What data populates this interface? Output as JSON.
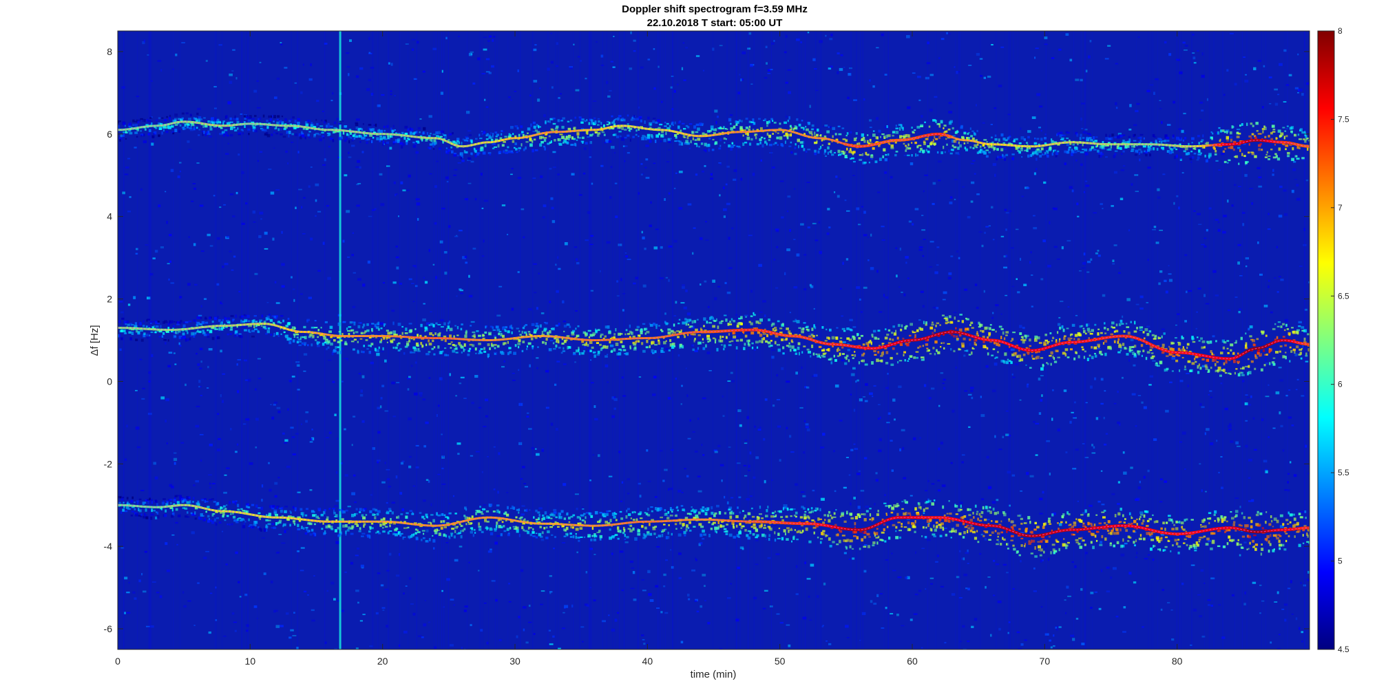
{
  "chart_data": {
    "type": "heatmap",
    "title": "Doppler shift spectrogram f=3.59 MHz",
    "subtitle": "22.10.2018   T start: 05:00 UT",
    "xlabel": "time (min)",
    "ylabel": "Δf [Hz]",
    "xlim": [
      0,
      90
    ],
    "ylim": [
      -6.5,
      8.5
    ],
    "x_ticks": [
      0,
      10,
      20,
      30,
      40,
      50,
      60,
      70,
      80
    ],
    "y_ticks": [
      -6,
      -4,
      -2,
      0,
      2,
      4,
      6,
      8
    ],
    "colormap": "jet",
    "colorbar": {
      "range": [
        4.5,
        8
      ],
      "ticks": [
        4.5,
        5,
        5.5,
        6,
        6.5,
        7,
        7.5,
        8
      ]
    },
    "background_level": 4.6,
    "traces": [
      {
        "x": [
          0,
          3,
          5,
          8,
          10,
          13,
          16,
          20,
          24,
          26,
          28,
          30,
          33,
          36,
          38,
          41,
          44,
          47,
          50,
          53,
          56,
          59,
          62,
          64,
          66,
          69,
          72,
          75,
          78,
          81,
          84,
          86,
          88,
          90
        ],
        "y": [
          6.1,
          6.2,
          6.3,
          6.2,
          6.25,
          6.2,
          6.1,
          6.0,
          5.9,
          5.7,
          5.8,
          5.9,
          6.05,
          6.1,
          6.2,
          6.1,
          5.95,
          6.05,
          6.1,
          5.9,
          5.7,
          5.85,
          6.0,
          5.85,
          5.75,
          5.7,
          5.8,
          5.75,
          5.75,
          5.7,
          5.75,
          5.85,
          5.8,
          5.7
        ],
        "intensity": [
          6.2,
          6.2,
          6.3,
          6.4,
          6.2,
          6.3,
          6.3,
          6.3,
          6.4,
          6.5,
          6.6,
          6.8,
          7.0,
          6.8,
          6.6,
          6.6,
          6.8,
          7.0,
          7.0,
          7.0,
          7.3,
          7.2,
          7.4,
          6.9,
          6.7,
          6.6,
          6.5,
          6.4,
          6.3,
          6.5,
          7.6,
          7.8,
          7.4,
          7.2
        ]
      },
      {
        "x": [
          0,
          4,
          8,
          11,
          14,
          17,
          20,
          24,
          28,
          32,
          36,
          40,
          44,
          48,
          51,
          54,
          57,
          60,
          63,
          66,
          69,
          72,
          76,
          80,
          84,
          86,
          88,
          90
        ],
        "y": [
          1.3,
          1.25,
          1.35,
          1.4,
          1.2,
          1.1,
          1.1,
          1.05,
          1.0,
          1.1,
          1.0,
          1.05,
          1.2,
          1.25,
          1.1,
          0.9,
          0.8,
          1.0,
          1.2,
          1.0,
          0.75,
          0.95,
          1.1,
          0.7,
          0.55,
          0.8,
          1.0,
          0.9
        ],
        "intensity": [
          6.3,
          6.3,
          6.4,
          6.5,
          6.8,
          7.0,
          7.0,
          7.2,
          7.0,
          6.9,
          7.1,
          7.1,
          7.2,
          7.4,
          7.3,
          7.4,
          7.5,
          7.7,
          7.8,
          7.5,
          7.6,
          7.5,
          7.4,
          7.5,
          7.6,
          7.9,
          7.7,
          7.3
        ]
      },
      {
        "x": [
          0,
          3,
          5,
          8,
          12,
          16,
          20,
          24,
          28,
          32,
          36,
          40,
          44,
          48,
          52,
          56,
          59,
          62,
          66,
          69,
          72,
          76,
          80,
          84,
          86,
          88,
          90
        ],
        "y": [
          -3.0,
          -3.05,
          -3.0,
          -3.15,
          -3.3,
          -3.4,
          -3.4,
          -3.5,
          -3.3,
          -3.45,
          -3.5,
          -3.4,
          -3.35,
          -3.4,
          -3.45,
          -3.6,
          -3.3,
          -3.3,
          -3.5,
          -3.75,
          -3.6,
          -3.5,
          -3.7,
          -3.55,
          -3.65,
          -3.6,
          -3.55
        ],
        "intensity": [
          6.2,
          6.2,
          6.4,
          6.6,
          6.6,
          6.8,
          6.9,
          7.0,
          7.0,
          6.9,
          7.0,
          7.1,
          7.0,
          7.2,
          7.4,
          7.8,
          7.6,
          7.5,
          7.7,
          7.8,
          7.7,
          7.6,
          7.5,
          7.6,
          7.9,
          7.6,
          7.4
        ]
      }
    ],
    "vertical_streaks": [
      {
        "x": 16.8,
        "intensity": 5.9
      }
    ]
  }
}
